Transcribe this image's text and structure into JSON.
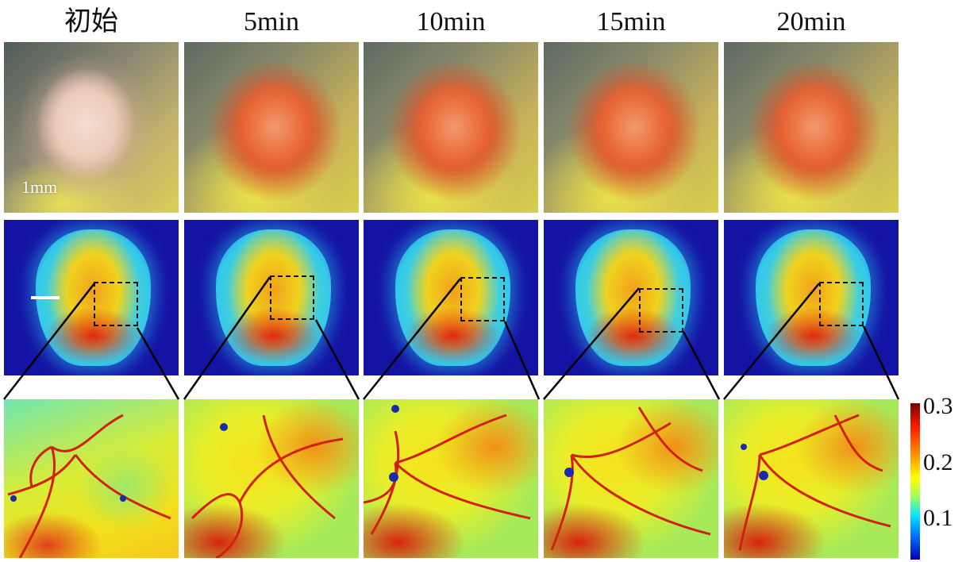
{
  "columns": [
    {
      "title": "初始"
    },
    {
      "title": "5min"
    },
    {
      "title": "10min"
    },
    {
      "title": "15min"
    },
    {
      "title": "20min"
    }
  ],
  "scale_bar_label": "1mm",
  "colorbar": {
    "ticks": [
      "0.3",
      "0.2",
      "0.1"
    ],
    "colors": [
      "#7a0000",
      "#ff1a00",
      "#ff8c00",
      "#ffff00",
      "#00e5ff",
      "#0070ff",
      "#0000b0"
    ]
  }
}
